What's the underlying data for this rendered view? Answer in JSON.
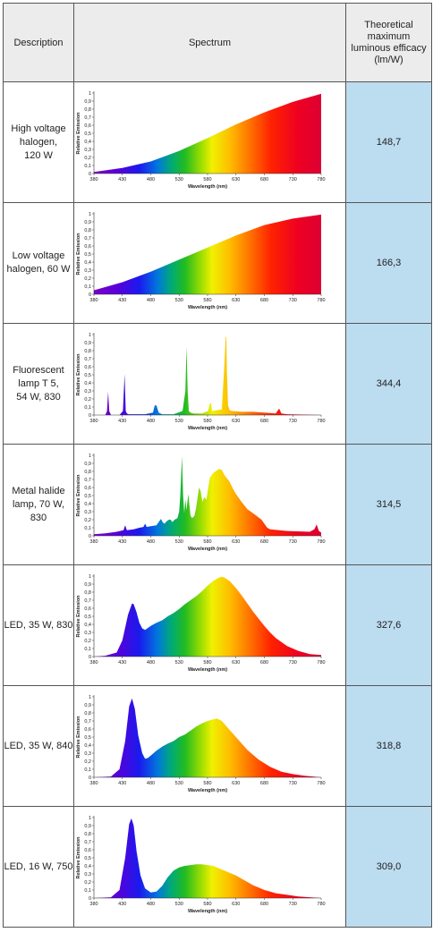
{
  "header": {
    "description": "Description",
    "spectrum": "Spectrum",
    "efficacy_lines": [
      "Theoretical",
      "maximum",
      "luminous efficacy",
      "(lm/W)"
    ]
  },
  "axis": {
    "xlabel": "Wavelength (nm)",
    "ylabel": "Relative Emission",
    "xticks": [
      380,
      430,
      480,
      530,
      580,
      630,
      680,
      730,
      780
    ],
    "yticks": [
      "0",
      "0,1",
      "0,2",
      "0,3",
      "0,4",
      "0,5",
      "0,6",
      "0,7",
      "0,8",
      "0,9",
      "1"
    ],
    "xlim": [
      380,
      780
    ],
    "ylim": [
      0,
      1
    ]
  },
  "rows": [
    {
      "description_lines": [
        "High voltage",
        "halogen,",
        "120 W"
      ],
      "efficacy": "148,7"
    },
    {
      "description_lines": [
        "Low voltage",
        "halogen, 60 W"
      ],
      "efficacy": "166,3"
    },
    {
      "description_lines": [
        "Fluorescent",
        "lamp T 5,",
        "54 W, 830"
      ],
      "efficacy": "344,4"
    },
    {
      "description_lines": [
        "Metal halide",
        "lamp, 70 W,",
        "830"
      ],
      "efficacy": "314,5"
    },
    {
      "description_lines": [
        "LED, 35 W, 830"
      ],
      "efficacy": "327,6"
    },
    {
      "description_lines": [
        "LED, 35 W, 840"
      ],
      "efficacy": "318,8"
    },
    {
      "description_lines": [
        "LED, 16 W, 750"
      ],
      "efficacy": "309,0"
    }
  ],
  "chart_data": [
    {
      "type": "area",
      "xlabel": "Wavelength (nm)",
      "ylabel": "Relative Emission",
      "xlim": [
        380,
        780
      ],
      "ylim": [
        0,
        1
      ],
      "x": [
        380,
        430,
        480,
        530,
        580,
        630,
        680,
        730,
        780
      ],
      "y": [
        0.02,
        0.07,
        0.15,
        0.28,
        0.44,
        0.61,
        0.76,
        0.89,
        0.99
      ]
    },
    {
      "type": "area",
      "xlabel": "Wavelength (nm)",
      "ylabel": "Relative Emission",
      "xlim": [
        380,
        780
      ],
      "ylim": [
        0,
        1
      ],
      "x": [
        380,
        430,
        480,
        530,
        580,
        630,
        680,
        730,
        780
      ],
      "y": [
        0.05,
        0.15,
        0.28,
        0.43,
        0.58,
        0.73,
        0.86,
        0.94,
        0.99
      ]
    },
    {
      "type": "area",
      "xlabel": "Wavelength (nm)",
      "ylabel": "Relative Emission",
      "xlim": [
        380,
        780
      ],
      "ylim": [
        0,
        1
      ],
      "x": [
        380,
        400,
        403,
        405,
        407,
        410,
        425,
        431,
        434,
        436,
        438,
        441,
        470,
        484,
        487,
        490,
        494,
        500,
        520,
        536,
        541,
        543,
        545,
        547,
        550,
        555,
        570,
        581,
        584,
        586,
        588,
        605,
        609,
        612,
        613,
        614,
        616,
        619,
        623,
        640,
        660,
        700,
        706,
        710,
        720,
        780
      ],
      "y": [
        0,
        0,
        0.05,
        0.29,
        0.05,
        0,
        0,
        0.05,
        0.51,
        0.05,
        0.02,
        0.01,
        0.01,
        0.03,
        0.12,
        0.12,
        0.03,
        0.01,
        0.01,
        0.05,
        0.3,
        0.85,
        0.3,
        0.05,
        0.03,
        0.02,
        0.02,
        0.05,
        0.14,
        0.15,
        0.05,
        0.07,
        0.55,
        0.97,
        0.97,
        0.55,
        0.12,
        0.06,
        0.05,
        0.04,
        0.04,
        0.02,
        0.08,
        0.02,
        0.01,
        0
      ]
    },
    {
      "type": "area",
      "xlabel": "Wavelength (nm)",
      "ylabel": "Relative Emission",
      "xlim": [
        380,
        780
      ],
      "ylim": [
        0,
        1
      ],
      "x": [
        380,
        400,
        420,
        432,
        435,
        438,
        450,
        460,
        467,
        470,
        473,
        480,
        490,
        495,
        498,
        501,
        504,
        508,
        512,
        515,
        518,
        522,
        527,
        530,
        532,
        535,
        537,
        539,
        541,
        543,
        546,
        550,
        553,
        557,
        560,
        565,
        568,
        571,
        574,
        578,
        584,
        590,
        600,
        605,
        610,
        618,
        625,
        630,
        640,
        650,
        660,
        675,
        680,
        685,
        690,
        720,
        760,
        768,
        772,
        776,
        780
      ],
      "y": [
        0.02,
        0.03,
        0.05,
        0.07,
        0.13,
        0.07,
        0.08,
        0.1,
        0.11,
        0.15,
        0.11,
        0.12,
        0.13,
        0.18,
        0.21,
        0.17,
        0.15,
        0.18,
        0.2,
        0.2,
        0.17,
        0.2,
        0.22,
        0.3,
        0.5,
        0.99,
        0.5,
        0.28,
        0.45,
        0.32,
        0.52,
        0.25,
        0.22,
        0.25,
        0.35,
        0.6,
        0.55,
        0.42,
        0.48,
        0.45,
        0.72,
        0.78,
        0.83,
        0.82,
        0.75,
        0.68,
        0.58,
        0.52,
        0.42,
        0.33,
        0.28,
        0.2,
        0.15,
        0.1,
        0.08,
        0.06,
        0.05,
        0.08,
        0.14,
        0.06,
        0.04
      ]
    },
    {
      "type": "area",
      "xlabel": "Wavelength (nm)",
      "ylabel": "Relative Emission",
      "xlim": [
        380,
        780
      ],
      "ylim": [
        0,
        1
      ],
      "x": [
        380,
        400,
        420,
        430,
        440,
        447,
        450,
        455,
        460,
        465,
        470,
        480,
        490,
        500,
        510,
        520,
        530,
        540,
        550,
        560,
        570,
        580,
        590,
        600,
        605,
        610,
        620,
        630,
        640,
        650,
        660,
        670,
        680,
        690,
        700,
        720,
        740,
        760,
        780
      ],
      "y": [
        0,
        0.01,
        0.05,
        0.2,
        0.52,
        0.66,
        0.65,
        0.55,
        0.42,
        0.35,
        0.33,
        0.38,
        0.42,
        0.45,
        0.5,
        0.54,
        0.59,
        0.65,
        0.7,
        0.75,
        0.81,
        0.88,
        0.94,
        0.98,
        0.99,
        0.98,
        0.93,
        0.85,
        0.76,
        0.66,
        0.56,
        0.47,
        0.38,
        0.3,
        0.23,
        0.13,
        0.07,
        0.03,
        0.02
      ]
    },
    {
      "type": "area",
      "xlabel": "Wavelength (nm)",
      "ylabel": "Relative Emission",
      "xlim": [
        380,
        780
      ],
      "ylim": [
        0,
        1
      ],
      "x": [
        380,
        410,
        425,
        435,
        442,
        447,
        452,
        458,
        465,
        470,
        475,
        480,
        490,
        500,
        510,
        520,
        530,
        540,
        550,
        560,
        570,
        580,
        590,
        596,
        600,
        605,
        615,
        630,
        650,
        670,
        690,
        710,
        730,
        750,
        780
      ],
      "y": [
        0,
        0.01,
        0.1,
        0.45,
        0.88,
        0.98,
        0.85,
        0.52,
        0.3,
        0.23,
        0.24,
        0.27,
        0.33,
        0.38,
        0.42,
        0.45,
        0.5,
        0.53,
        0.58,
        0.63,
        0.67,
        0.7,
        0.72,
        0.73,
        0.72,
        0.7,
        0.62,
        0.5,
        0.34,
        0.22,
        0.13,
        0.07,
        0.04,
        0.02,
        0
      ]
    },
    {
      "type": "area",
      "xlabel": "Wavelength (nm)",
      "ylabel": "Relative Emission",
      "xlim": [
        380,
        780
      ],
      "ylim": [
        0,
        1
      ],
      "x": [
        380,
        410,
        425,
        435,
        442,
        446,
        450,
        455,
        462,
        470,
        480,
        490,
        500,
        510,
        520,
        530,
        540,
        550,
        560,
        570,
        580,
        590,
        600,
        610,
        620,
        630,
        640,
        650,
        660,
        670,
        680,
        690,
        700,
        720,
        740,
        760,
        780
      ],
      "y": [
        0,
        0.01,
        0.1,
        0.5,
        0.92,
        0.99,
        0.9,
        0.58,
        0.28,
        0.12,
        0.07,
        0.08,
        0.15,
        0.26,
        0.34,
        0.38,
        0.4,
        0.41,
        0.42,
        0.42,
        0.41,
        0.4,
        0.37,
        0.34,
        0.31,
        0.28,
        0.24,
        0.2,
        0.16,
        0.13,
        0.1,
        0.08,
        0.06,
        0.04,
        0.02,
        0.01,
        0
      ]
    }
  ],
  "colors": {
    "header_bg": "#ececec",
    "value_bg": "#bcdcf0",
    "border": "#555555"
  }
}
